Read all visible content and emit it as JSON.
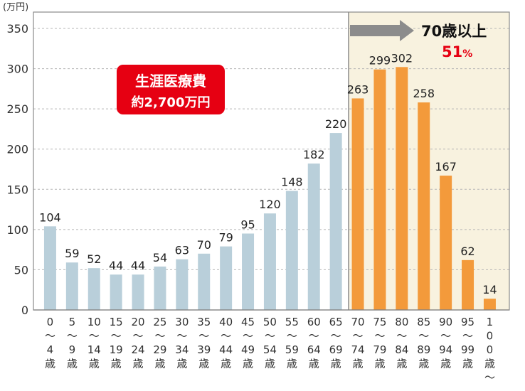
{
  "chart_data": {
    "type": "bar",
    "ylabel": "(万円)",
    "ylim": [
      0,
      350
    ],
    "yticks": [
      0,
      50,
      100,
      150,
      200,
      250,
      300,
      350
    ],
    "grid": "horizontal-dashed",
    "categories": [
      [
        "0",
        "〜",
        "4",
        "歳"
      ],
      [
        "5",
        "〜",
        "9",
        "歳"
      ],
      [
        "10",
        "〜",
        "14",
        "歳"
      ],
      [
        "15",
        "〜",
        "19",
        "歳"
      ],
      [
        "20",
        "〜",
        "24",
        "歳"
      ],
      [
        "25",
        "〜",
        "29",
        "歳"
      ],
      [
        "30",
        "〜",
        "34",
        "歳"
      ],
      [
        "35",
        "〜",
        "39",
        "歳"
      ],
      [
        "40",
        "〜",
        "44",
        "歳"
      ],
      [
        "45",
        "〜",
        "49",
        "歳"
      ],
      [
        "50",
        "〜",
        "54",
        "歳"
      ],
      [
        "55",
        "〜",
        "59",
        "歳"
      ],
      [
        "60",
        "〜",
        "64",
        "歳"
      ],
      [
        "65",
        "〜",
        "69",
        "歳"
      ],
      [
        "70",
        "〜",
        "74",
        "歳"
      ],
      [
        "75",
        "〜",
        "79",
        "歳"
      ],
      [
        "80",
        "〜",
        "84",
        "歳"
      ],
      [
        "85",
        "〜",
        "89",
        "歳"
      ],
      [
        "90",
        "〜",
        "94",
        "歳"
      ],
      [
        "95",
        "〜",
        "99",
        "歳"
      ],
      [
        "1",
        "0",
        "0",
        "歳",
        "〜"
      ]
    ],
    "values": [
      104,
      59,
      52,
      44,
      44,
      54,
      63,
      70,
      79,
      95,
      120,
      148,
      182,
      220,
      263,
      299,
      302,
      258,
      167,
      62,
      14
    ],
    "highlight_from_index": 14,
    "colors": {
      "normal": "#b9cfda",
      "highlight": "#f39a3b",
      "highlight_bg": "#f8f2df",
      "badge": "#e60012",
      "arrow": "#8c8c8c",
      "pct": "#e60012"
    },
    "annotations": {
      "badge_title": "生涯医療費",
      "badge_sub": "約2,700万円",
      "highlight_title": "70歳以上",
      "highlight_pct": "51",
      "highlight_pct_unit": "%"
    }
  }
}
